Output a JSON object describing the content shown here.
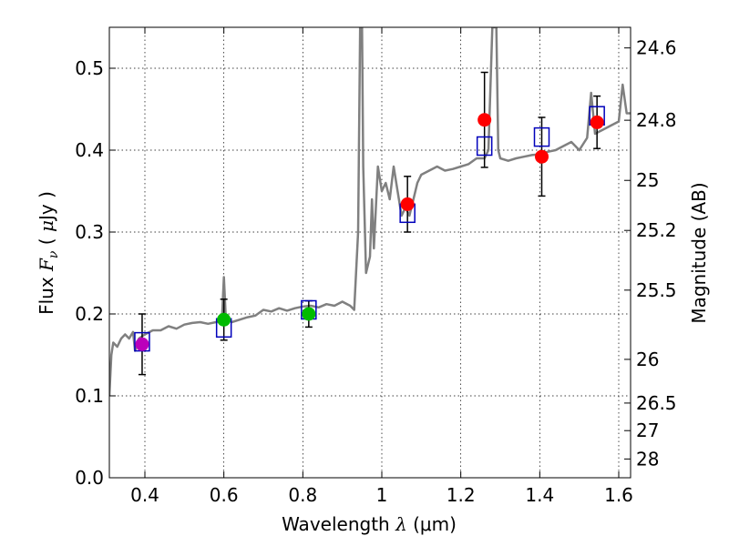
{
  "chart_data": {
    "type": "scatter",
    "xlabel": "Wavelength  λ (μm)",
    "ylabel": "Flux  F_ν  ( μJy )",
    "y2label": "Magnitude (AB)",
    "xlim": [
      0.31,
      1.63
    ],
    "ylim": [
      0.0,
      0.55
    ],
    "grid": true,
    "xticks": [
      {
        "v": 0.4,
        "label": "0.4"
      },
      {
        "v": 0.6,
        "label": "0.6"
      },
      {
        "v": 0.8,
        "label": "0.8"
      },
      {
        "v": 1.0,
        "label": "1"
      },
      {
        "v": 1.2,
        "label": "1.2"
      },
      {
        "v": 1.4,
        "label": "1.4"
      },
      {
        "v": 1.6,
        "label": "1.6"
      }
    ],
    "yticks": [
      {
        "v": 0.0,
        "label": "0.0"
      },
      {
        "v": 0.1,
        "label": "0.1"
      },
      {
        "v": 0.2,
        "label": "0.2"
      },
      {
        "v": 0.3,
        "label": "0.3"
      },
      {
        "v": 0.4,
        "label": "0.4"
      },
      {
        "v": 0.5,
        "label": "0.5"
      }
    ],
    "magnitude_ticks": [
      {
        "mag": 24.6,
        "label": "24.6"
      },
      {
        "mag": 24.8,
        "label": "24.8"
      },
      {
        "mag": 25.0,
        "label": "25"
      },
      {
        "mag": 25.2,
        "label": "25.2"
      },
      {
        "mag": 25.5,
        "label": "25.5"
      },
      {
        "mag": 26.0,
        "label": "26"
      },
      {
        "mag": 26.5,
        "label": "26.5"
      },
      {
        "mag": 27.0,
        "label": "27"
      },
      {
        "mag": 28.0,
        "label": "28"
      }
    ],
    "colors": {
      "spectrum": "#808080",
      "model_box": "#0000bb",
      "error_bar": "#000000",
      "violet": "#bb00bb",
      "green": "#00bb00",
      "red": "#ff0000"
    },
    "spectrum": [
      [
        0.31,
        0.1
      ],
      [
        0.315,
        0.15
      ],
      [
        0.32,
        0.165
      ],
      [
        0.33,
        0.16
      ],
      [
        0.34,
        0.17
      ],
      [
        0.35,
        0.175
      ],
      [
        0.36,
        0.17
      ],
      [
        0.37,
        0.178
      ],
      [
        0.375,
        0.155
      ],
      [
        0.385,
        0.17
      ],
      [
        0.4,
        0.175
      ],
      [
        0.42,
        0.18
      ],
      [
        0.44,
        0.18
      ],
      [
        0.46,
        0.185
      ],
      [
        0.48,
        0.182
      ],
      [
        0.5,
        0.187
      ],
      [
        0.52,
        0.189
      ],
      [
        0.54,
        0.19
      ],
      [
        0.56,
        0.188
      ],
      [
        0.58,
        0.19
      ],
      [
        0.595,
        0.192
      ],
      [
        0.6,
        0.245
      ],
      [
        0.605,
        0.195
      ],
      [
        0.62,
        0.19
      ],
      [
        0.64,
        0.193
      ],
      [
        0.66,
        0.196
      ],
      [
        0.68,
        0.198
      ],
      [
        0.7,
        0.205
      ],
      [
        0.72,
        0.203
      ],
      [
        0.74,
        0.207
      ],
      [
        0.76,
        0.204
      ],
      [
        0.78,
        0.207
      ],
      [
        0.8,
        0.209
      ],
      [
        0.82,
        0.21
      ],
      [
        0.84,
        0.208
      ],
      [
        0.86,
        0.212
      ],
      [
        0.88,
        0.21
      ],
      [
        0.9,
        0.215
      ],
      [
        0.92,
        0.21
      ],
      [
        0.93,
        0.205
      ],
      [
        0.94,
        0.3
      ],
      [
        0.945,
        0.55
      ],
      [
        0.95,
        0.55
      ],
      [
        0.953,
        0.38
      ],
      [
        0.96,
        0.25
      ],
      [
        0.97,
        0.27
      ],
      [
        0.975,
        0.34
      ],
      [
        0.98,
        0.28
      ],
      [
        0.99,
        0.38
      ],
      [
        1.0,
        0.35
      ],
      [
        1.01,
        0.36
      ],
      [
        1.02,
        0.34
      ],
      [
        1.03,
        0.38
      ],
      [
        1.04,
        0.35
      ],
      [
        1.05,
        0.32
      ],
      [
        1.06,
        0.33
      ],
      [
        1.07,
        0.32
      ],
      [
        1.08,
        0.34
      ],
      [
        1.09,
        0.36
      ],
      [
        1.1,
        0.37
      ],
      [
        1.12,
        0.375
      ],
      [
        1.14,
        0.38
      ],
      [
        1.16,
        0.375
      ],
      [
        1.18,
        0.377
      ],
      [
        1.2,
        0.38
      ],
      [
        1.22,
        0.383
      ],
      [
        1.24,
        0.39
      ],
      [
        1.26,
        0.39
      ],
      [
        1.27,
        0.4
      ],
      [
        1.28,
        0.55
      ],
      [
        1.29,
        0.55
      ],
      [
        1.295,
        0.4
      ],
      [
        1.3,
        0.39
      ],
      [
        1.32,
        0.387
      ],
      [
        1.34,
        0.39
      ],
      [
        1.36,
        0.392
      ],
      [
        1.38,
        0.394
      ],
      [
        1.4,
        0.395
      ],
      [
        1.42,
        0.398
      ],
      [
        1.44,
        0.4
      ],
      [
        1.46,
        0.405
      ],
      [
        1.48,
        0.41
      ],
      [
        1.5,
        0.4
      ],
      [
        1.52,
        0.415
      ],
      [
        1.53,
        0.47
      ],
      [
        1.54,
        0.42
      ],
      [
        1.56,
        0.425
      ],
      [
        1.58,
        0.43
      ],
      [
        1.6,
        0.435
      ],
      [
        1.61,
        0.48
      ],
      [
        1.62,
        0.445
      ],
      [
        1.63,
        0.445
      ]
    ],
    "observed": [
      {
        "x": 0.393,
        "y": 0.163,
        "err": 0.037,
        "color": "violet"
      },
      {
        "x": 0.6,
        "y": 0.193,
        "err": 0.025,
        "color": "green"
      },
      {
        "x": 0.815,
        "y": 0.2,
        "err": 0.016,
        "color": "green"
      },
      {
        "x": 1.065,
        "y": 0.334,
        "err": 0.034,
        "color": "red"
      },
      {
        "x": 1.26,
        "y": 0.437,
        "err": 0.058,
        "color": "red"
      },
      {
        "x": 1.405,
        "y": 0.392,
        "err": 0.048,
        "color": "red"
      },
      {
        "x": 1.545,
        "y": 0.434,
        "err": 0.032,
        "color": "red"
      }
    ],
    "model": [
      {
        "x": 0.393,
        "y": 0.166
      },
      {
        "x": 0.6,
        "y": 0.183
      },
      {
        "x": 0.815,
        "y": 0.205
      },
      {
        "x": 1.065,
        "y": 0.323
      },
      {
        "x": 1.26,
        "y": 0.405
      },
      {
        "x": 1.405,
        "y": 0.416
      },
      {
        "x": 1.545,
        "y": 0.442
      }
    ]
  }
}
